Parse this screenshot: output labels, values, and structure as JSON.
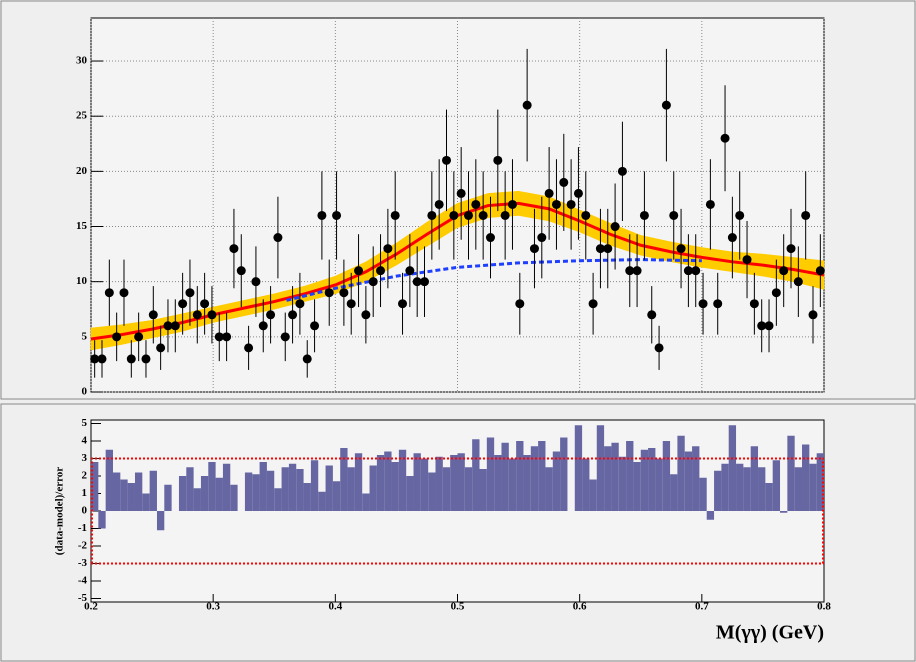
{
  "chart_data": [
    {
      "type": "scatter",
      "xlim": [
        0.2,
        0.8
      ],
      "ylim": [
        0,
        33.9
      ],
      "yticks": [
        0,
        5,
        10,
        15,
        20,
        25,
        30
      ],
      "grid": true,
      "x": [
        0.203,
        0.209,
        0.215,
        0.221,
        0.227,
        0.233,
        0.239,
        0.245,
        0.251,
        0.257,
        0.263,
        0.269,
        0.275,
        0.281,
        0.287,
        0.293,
        0.299,
        0.305,
        0.311,
        0.317,
        0.323,
        0.329,
        0.335,
        0.341,
        0.347,
        0.353,
        0.359,
        0.365,
        0.371,
        0.377,
        0.383,
        0.389,
        0.395,
        0.401,
        0.407,
        0.413,
        0.419,
        0.425,
        0.431,
        0.437,
        0.443,
        0.449,
        0.455,
        0.461,
        0.467,
        0.473,
        0.479,
        0.485,
        0.491,
        0.497,
        0.503,
        0.509,
        0.515,
        0.521,
        0.527,
        0.533,
        0.539,
        0.545,
        0.551,
        0.557,
        0.563,
        0.569,
        0.575,
        0.581,
        0.587,
        0.593,
        0.599,
        0.605,
        0.611,
        0.617,
        0.623,
        0.629,
        0.635,
        0.641,
        0.647,
        0.653,
        0.659,
        0.665,
        0.671,
        0.677,
        0.683,
        0.689,
        0.695,
        0.701,
        0.707,
        0.713,
        0.719,
        0.725,
        0.731,
        0.737,
        0.743,
        0.749,
        0.755,
        0.761,
        0.767,
        0.773,
        0.779,
        0.785,
        0.791,
        0.797
      ],
      "series": [
        {
          "kind": "points",
          "color": "#000000",
          "values": [
            3,
            3,
            9,
            5,
            9,
            3,
            5,
            3,
            7,
            4,
            6,
            6,
            8,
            9,
            7,
            8,
            7,
            5,
            5,
            13,
            11,
            4,
            10,
            6,
            7,
            14,
            5,
            7,
            8,
            3,
            6,
            16,
            9,
            16,
            9,
            8,
            11,
            7,
            10,
            11,
            13,
            16,
            8,
            11,
            10,
            10,
            16,
            17,
            21,
            16,
            18,
            16,
            17,
            16,
            14,
            21,
            16,
            17,
            8,
            26,
            13,
            14,
            18,
            17,
            19,
            17,
            18,
            16,
            8,
            13,
            13,
            15,
            20,
            11,
            11,
            16,
            7,
            4,
            26,
            16,
            13,
            11,
            11,
            8,
            17,
            8,
            23,
            14,
            16,
            12,
            8,
            6,
            6,
            9,
            11,
            13,
            10,
            16,
            7,
            11
          ],
          "errors": [
            1.7,
            1.7,
            3,
            2.2,
            3,
            1.7,
            2.2,
            1.7,
            2.6,
            2,
            2.4,
            2.4,
            2.8,
            3,
            2.6,
            2.8,
            2.6,
            2.2,
            2.2,
            3.6,
            3.3,
            2,
            3.2,
            2.4,
            2.6,
            3.7,
            2.2,
            2.6,
            2.8,
            1.7,
            2.4,
            4,
            3,
            4,
            3,
            2.8,
            3.3,
            2.6,
            3.2,
            3.3,
            3.6,
            4,
            2.8,
            3.3,
            3.2,
            3.2,
            4,
            4.1,
            4.6,
            4,
            4.2,
            4,
            4.1,
            4,
            3.7,
            4.6,
            4,
            4.1,
            2.8,
            5.1,
            3.6,
            3.7,
            4.2,
            4.1,
            4.4,
            4.1,
            4.2,
            4,
            2.8,
            3.6,
            3.6,
            3.9,
            4.5,
            3.3,
            3.3,
            4,
            2.6,
            2,
            5.1,
            4,
            3.6,
            3.3,
            3.3,
            2.8,
            4.1,
            2.8,
            4.8,
            3.7,
            4,
            3.5,
            2.8,
            2.4,
            2.4,
            3,
            3.3,
            3.6,
            3.2,
            4,
            2.6,
            3.3
          ]
        },
        {
          "kind": "line",
          "color": "#ff0000",
          "band_color": "#ffcc00",
          "x": [
            0.2,
            0.225,
            0.25,
            0.275,
            0.3,
            0.325,
            0.35,
            0.375,
            0.4,
            0.425,
            0.45,
            0.475,
            0.5,
            0.525,
            0.55,
            0.575,
            0.6,
            0.625,
            0.65,
            0.675,
            0.7,
            0.725,
            0.75,
            0.775,
            0.8
          ],
          "values": [
            4.8,
            5.2,
            5.7,
            6.3,
            7.0,
            7.6,
            8.2,
            8.9,
            9.7,
            10.9,
            12.5,
            14.3,
            16.0,
            16.9,
            17.1,
            16.6,
            15.5,
            14.3,
            13.3,
            12.7,
            12.2,
            11.8,
            11.5,
            11.1,
            10.6
          ],
          "errors": [
            1.0,
            0.9,
            0.8,
            0.8,
            0.7,
            0.7,
            0.7,
            0.7,
            0.8,
            0.9,
            1.0,
            1.1,
            1.1,
            1.1,
            1.1,
            1.1,
            1.0,
            1.0,
            0.9,
            0.9,
            0.9,
            0.9,
            1.0,
            1.1,
            1.3
          ]
        },
        {
          "kind": "dashed",
          "color": "#1f3fff",
          "x": [
            0.36,
            0.4,
            0.45,
            0.5,
            0.55,
            0.6,
            0.65,
            0.7
          ],
          "values": [
            8.3,
            9.4,
            10.5,
            11.3,
            11.7,
            11.9,
            12.0,
            11.9
          ]
        }
      ]
    },
    {
      "type": "bar",
      "ylabel": "(data-model)/error",
      "xlabel": "M(γγ) (GeV)",
      "xlim": [
        0.2,
        0.8
      ],
      "xticks": [
        0.2,
        0.3,
        0.4,
        0.5,
        0.6,
        0.7,
        0.8
      ],
      "ylim": [
        -5.2,
        5.2
      ],
      "yticks": [
        -5,
        -4,
        -3,
        -2,
        -1,
        0,
        1,
        2,
        3,
        4,
        5
      ],
      "hlines": [
        -3,
        3
      ],
      "hline_color": "#ff0000",
      "color": "#6666a3",
      "x": [
        0.203,
        0.209,
        0.215,
        0.221,
        0.227,
        0.233,
        0.239,
        0.245,
        0.251,
        0.257,
        0.263,
        0.269,
        0.275,
        0.281,
        0.287,
        0.293,
        0.299,
        0.305,
        0.311,
        0.317,
        0.323,
        0.329,
        0.335,
        0.341,
        0.347,
        0.353,
        0.359,
        0.365,
        0.371,
        0.377,
        0.383,
        0.389,
        0.395,
        0.401,
        0.407,
        0.413,
        0.419,
        0.425,
        0.431,
        0.437,
        0.443,
        0.449,
        0.455,
        0.461,
        0.467,
        0.473,
        0.479,
        0.485,
        0.491,
        0.497,
        0.503,
        0.509,
        0.515,
        0.521,
        0.527,
        0.533,
        0.539,
        0.545,
        0.551,
        0.557,
        0.563,
        0.569,
        0.575,
        0.581,
        0.587,
        0.593,
        0.599,
        0.605,
        0.611,
        0.617,
        0.623,
        0.629,
        0.635,
        0.641,
        0.647,
        0.653,
        0.659,
        0.665,
        0.671,
        0.677,
        0.683,
        0.689,
        0.695,
        0.701,
        0.707,
        0.713,
        0.719,
        0.725,
        0.731,
        0.737,
        0.743,
        0.749,
        0.755,
        0.761,
        0.767,
        0.773,
        0.779,
        0.785,
        0.791,
        0.797
      ],
      "values": [
        2.8,
        -1.0,
        3.5,
        2.2,
        1.8,
        1.6,
        2.2,
        1.0,
        2.3,
        -1.1,
        1.5,
        0.0,
        2.0,
        2.5,
        1.3,
        2.0,
        2.8,
        1.9,
        2.7,
        1.5,
        0.0,
        2.2,
        2.1,
        2.8,
        2.3,
        1.3,
        2.5,
        2.7,
        2.4,
        1.6,
        2.9,
        1.1,
        2.6,
        1.7,
        3.6,
        2.5,
        3.3,
        1.0,
        2.6,
        3.2,
        3.4,
        2.8,
        3.5,
        2.0,
        3.3,
        3.0,
        2.2,
        3.1,
        2.5,
        3.2,
        3.3,
        2.5,
        4.1,
        2.4,
        4.2,
        3.2,
        3.9,
        3.0,
        4.0,
        3.2,
        3.7,
        4.0,
        2.5,
        3.4,
        4.2,
        0.0,
        4.9,
        3.0,
        1.8,
        4.9,
        3.7,
        3.9,
        3.1,
        4.0,
        2.8,
        3.5,
        3.6,
        3.0,
        4.0,
        2.1,
        4.3,
        3.4,
        3.7,
        1.9,
        -0.5,
        2.3,
        2.7,
        4.9,
        2.7,
        2.5,
        3.7,
        2.5,
        1.6,
        2.9,
        -0.1,
        4.3,
        2.5,
        3.8,
        2.7,
        3.3
      ]
    }
  ]
}
